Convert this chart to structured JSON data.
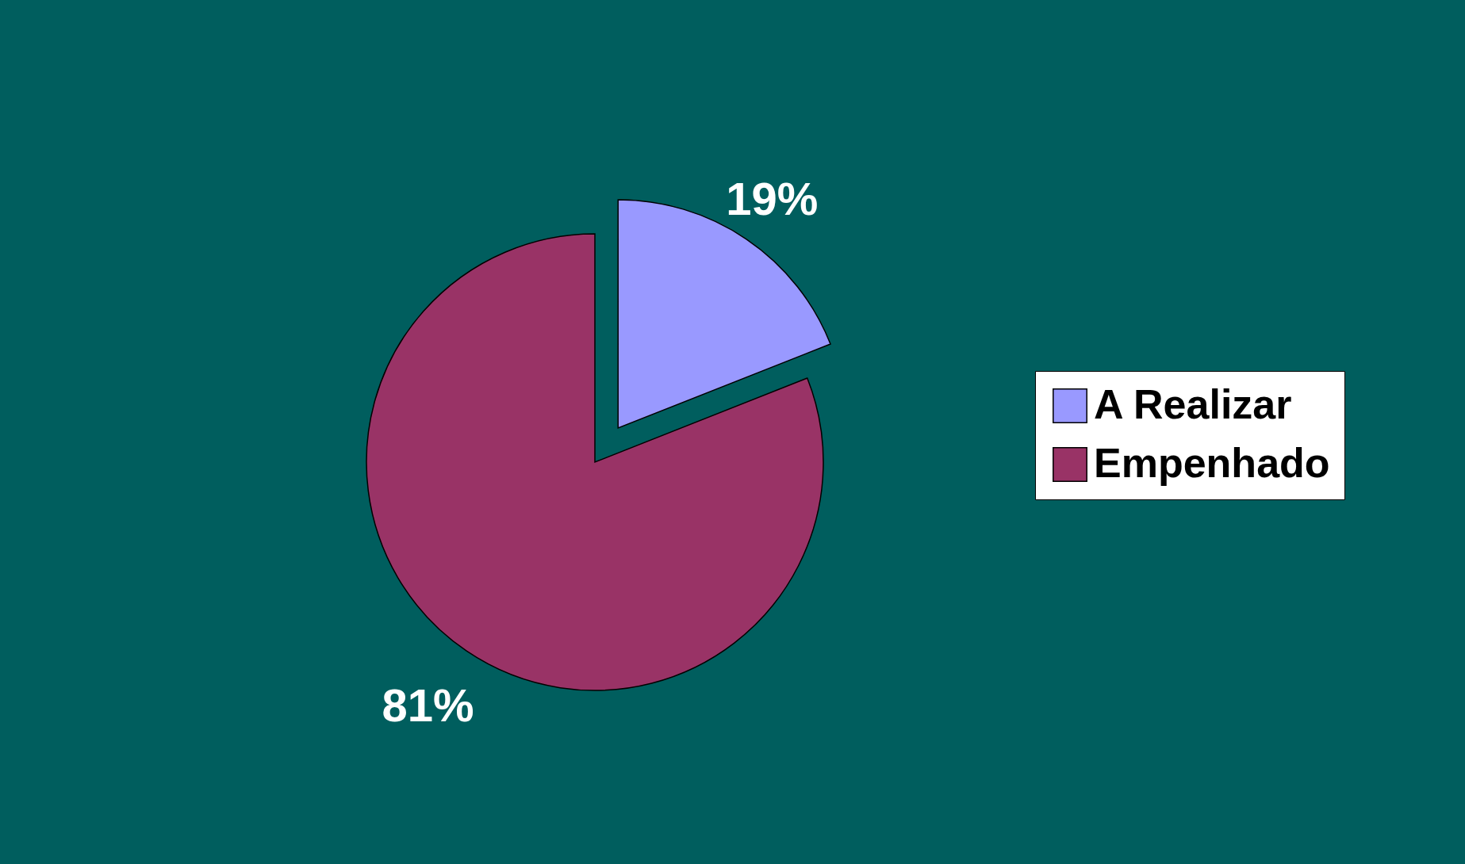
{
  "chart_data": {
    "type": "pie",
    "categories": [
      "A Realizar",
      "Empenhado"
    ],
    "values": [
      19,
      81
    ],
    "colors": [
      "#9999ff",
      "#993366"
    ],
    "value_labels": [
      "19%",
      "81%"
    ],
    "legend": "right"
  }
}
